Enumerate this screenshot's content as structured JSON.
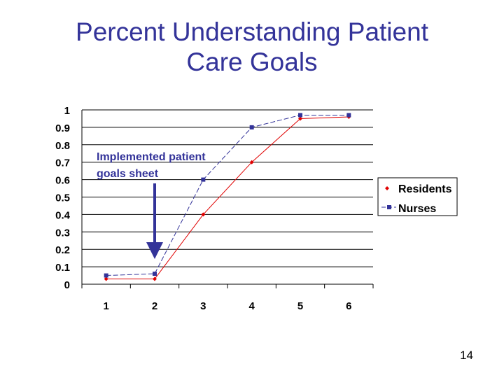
{
  "slide": {
    "title_line1": "Percent Understanding Patient",
    "title_line2": "Care Goals",
    "page_number": "14"
  },
  "chart_data": {
    "type": "line",
    "title": "Percent Understanding Patient Care Goals",
    "xlabel": "",
    "ylabel": "",
    "x": [
      1,
      2,
      3,
      4,
      5,
      6
    ],
    "x_tick_labels": [
      "1",
      "2",
      "3",
      "4",
      "5",
      "6"
    ],
    "y_tick_labels": [
      "0",
      "0.1",
      "0.2",
      "0.3",
      "0.4",
      "0.5",
      "0.6",
      "0.7",
      "0.8",
      "0.9",
      "1"
    ],
    "ylim": [
      0,
      1
    ],
    "grid": "horizontal",
    "legend_position": "right",
    "series": [
      {
        "name": "Residents",
        "values": [
          0.03,
          0.03,
          0.4,
          0.7,
          0.95,
          0.96
        ],
        "color": "#e00000",
        "marker": "diamond",
        "line": "solid"
      },
      {
        "name": "Nurses",
        "values": [
          0.05,
          0.06,
          0.6,
          0.9,
          0.97,
          0.97
        ],
        "color": "#333399",
        "marker": "square",
        "line": "dashed"
      }
    ],
    "annotation": {
      "text_line1": "Implemented patient",
      "text_line2": "goals sheet",
      "x": 2,
      "color": "#333399"
    }
  }
}
